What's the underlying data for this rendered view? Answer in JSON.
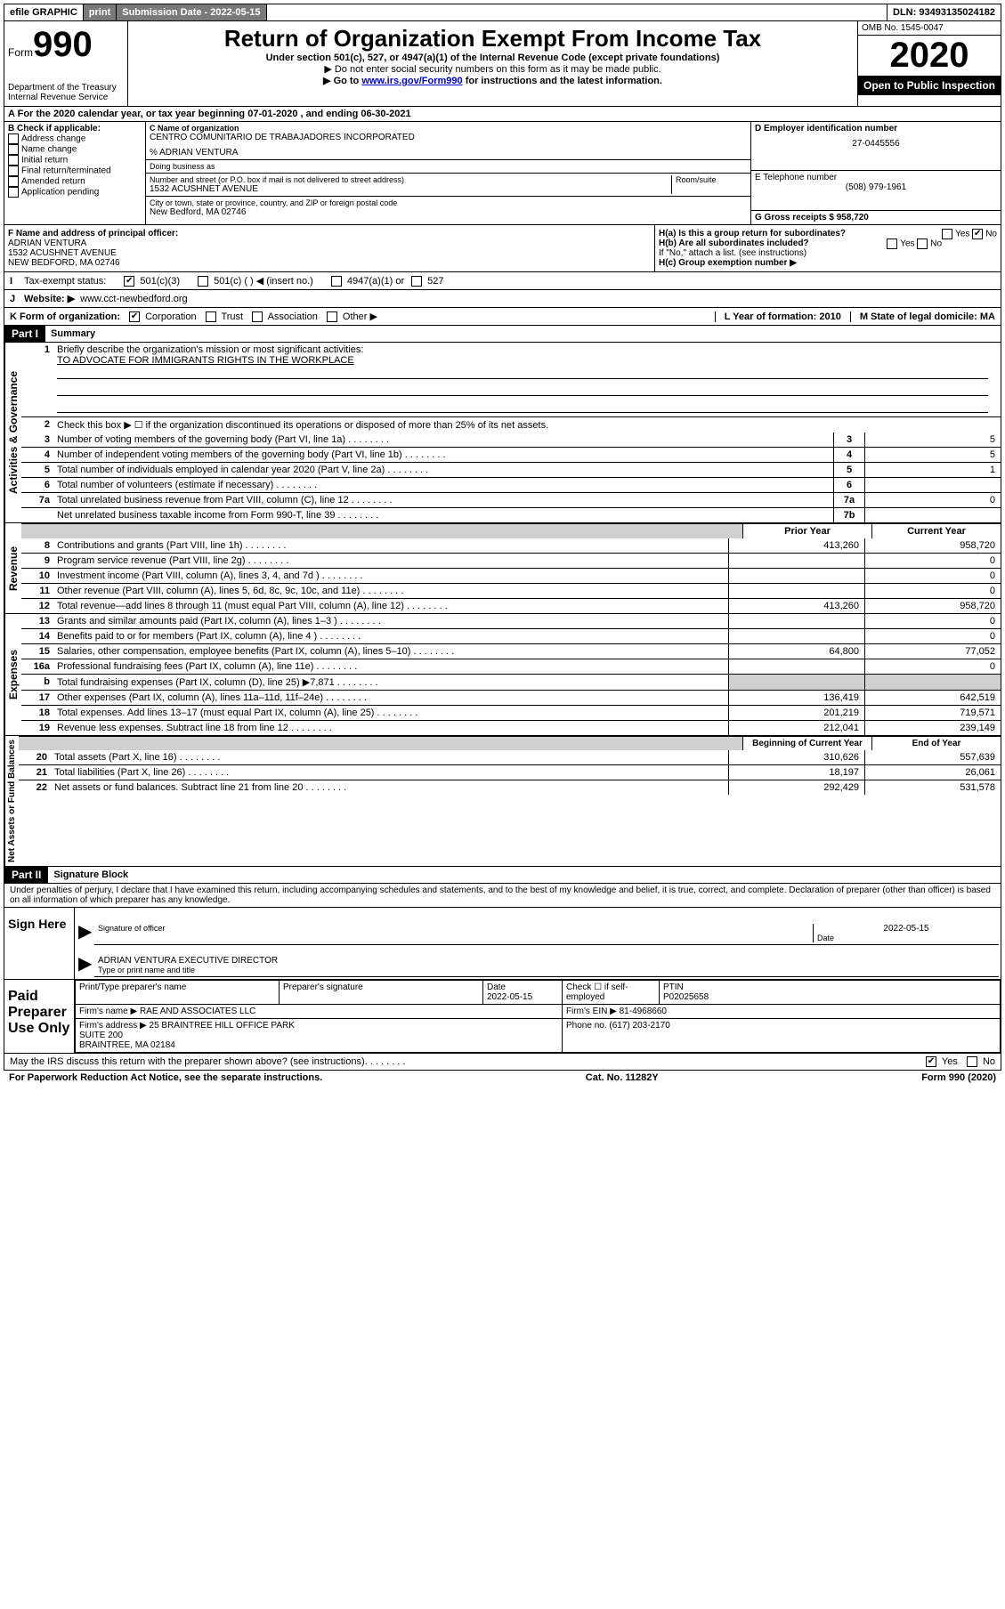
{
  "topbar": {
    "efile": "efile GRAPHIC",
    "print": "print",
    "sub_label": "Submission Date - 2022-05-15",
    "dln": "DLN: 93493135024182"
  },
  "header": {
    "form_word": "Form",
    "form_num": "990",
    "dept": "Department of the Treasury",
    "irs": "Internal Revenue Service",
    "title": "Return of Organization Exempt From Income Tax",
    "sub1": "Under section 501(c), 527, or 4947(a)(1) of the Internal Revenue Code (except private foundations)",
    "sub2": "▶ Do not enter social security numbers on this form as it may be made public.",
    "sub3_pre": "▶ Go to ",
    "sub3_link": "www.irs.gov/Form990",
    "sub3_post": " for instructions and the latest information.",
    "omb": "OMB No. 1545-0047",
    "year": "2020",
    "open": "Open to Public Inspection"
  },
  "row_a": {
    "text": "For the 2020 calendar year, or tax year beginning 07-01-2020    , and ending 06-30-2021",
    "prefix": "A"
  },
  "section_b": {
    "label": "B Check if applicable:",
    "items": [
      "Address change",
      "Name change",
      "Initial return",
      "Final return/terminated",
      "Amended return",
      "Application pending"
    ]
  },
  "section_c": {
    "name_label": "C Name of organization",
    "name": "CENTRO COMUNITARIO DE TRABAJADORES INCORPORATED",
    "care_of": "% ADRIAN VENTURA",
    "dba_label": "Doing business as",
    "street_label": "Number and street (or P.O. box if mail is not delivered to street address)",
    "room_label": "Room/suite",
    "street": "1532 ACUSHNET AVENUE",
    "city_label": "City or town, state or province, country, and ZIP or foreign postal code",
    "city": "New Bedford, MA  02746"
  },
  "section_d": {
    "ein_label": "D Employer identification number",
    "ein": "27-0445556",
    "phone_label": "E Telephone number",
    "phone": "(508) 979-1961",
    "gross_label": "G Gross receipts $ 958,720"
  },
  "section_f": {
    "label": "F Name and address of principal officer:",
    "name": "ADRIAN VENTURA",
    "street": "1532 ACUSHNET AVENUE",
    "city": "NEW BEDFORD, MA  02746"
  },
  "section_h": {
    "ha": "H(a)  Is this a group return for subordinates?",
    "hb": "H(b)  Are all subordinates included?",
    "hb_note": "If \"No,\" attach a list. (see instructions)",
    "hc": "H(c)  Group exemption number ▶",
    "yes": "Yes",
    "no": "No"
  },
  "row_i": {
    "label": "I",
    "text": "Tax-exempt status:",
    "opts": [
      "501(c)(3)",
      "501(c) (  ) ◀ (insert no.)",
      "4947(a)(1) or",
      "527"
    ]
  },
  "row_j": {
    "label": "J",
    "text": "Website: ▶",
    "url": "www.cct-newbedford.org"
  },
  "row_k": {
    "label": "K Form of organization:",
    "opts": [
      "Corporation",
      "Trust",
      "Association",
      "Other ▶"
    ],
    "l_label": "L Year of formation: 2010",
    "m_label": "M State of legal domicile: MA"
  },
  "part1": {
    "header": "Part I",
    "title": "Summary",
    "q1": "Briefly describe the organization's mission or most significant activities:",
    "mission": "TO ADVOCATE FOR IMMIGRANTS RIGHTS IN THE WORKPLACE",
    "q2": "Check this box ▶ ☐  if the organization discontinued its operations or disposed of more than 25% of its net assets.",
    "prior_year": "Prior Year",
    "current_year": "Current Year",
    "begin_year": "Beginning of Current Year",
    "end_year": "End of Year",
    "sections": {
      "governance": "Activities & Governance",
      "revenue": "Revenue",
      "expenses": "Expenses",
      "netassets": "Net Assets or Fund Balances"
    },
    "lines_gov": [
      {
        "n": "3",
        "d": "Number of voting members of the governing body (Part VI, line 1a)",
        "box": "3",
        "val": "5"
      },
      {
        "n": "4",
        "d": "Number of independent voting members of the governing body (Part VI, line 1b)",
        "box": "4",
        "val": "5"
      },
      {
        "n": "5",
        "d": "Total number of individuals employed in calendar year 2020 (Part V, line 2a)",
        "box": "5",
        "val": "1"
      },
      {
        "n": "6",
        "d": "Total number of volunteers (estimate if necessary)",
        "box": "6",
        "val": ""
      },
      {
        "n": "7a",
        "d": "Total unrelated business revenue from Part VIII, column (C), line 12",
        "box": "7a",
        "val": "0"
      },
      {
        "n": "",
        "d": "Net unrelated business taxable income from Form 990-T, line 39",
        "box": "7b",
        "val": ""
      }
    ],
    "lines_rev": [
      {
        "n": "8",
        "d": "Contributions and grants (Part VIII, line 1h)",
        "py": "413,260",
        "cy": "958,720"
      },
      {
        "n": "9",
        "d": "Program service revenue (Part VIII, line 2g)",
        "py": "",
        "cy": "0"
      },
      {
        "n": "10",
        "d": "Investment income (Part VIII, column (A), lines 3, 4, and 7d )",
        "py": "",
        "cy": "0"
      },
      {
        "n": "11",
        "d": "Other revenue (Part VIII, column (A), lines 5, 6d, 8c, 9c, 10c, and 11e)",
        "py": "",
        "cy": "0"
      },
      {
        "n": "12",
        "d": "Total revenue—add lines 8 through 11 (must equal Part VIII, column (A), line 12)",
        "py": "413,260",
        "cy": "958,720"
      }
    ],
    "lines_exp": [
      {
        "n": "13",
        "d": "Grants and similar amounts paid (Part IX, column (A), lines 1–3 )",
        "py": "",
        "cy": "0"
      },
      {
        "n": "14",
        "d": "Benefits paid to or for members (Part IX, column (A), line 4 )",
        "py": "",
        "cy": "0"
      },
      {
        "n": "15",
        "d": "Salaries, other compensation, employee benefits (Part IX, column (A), lines 5–10)",
        "py": "64,800",
        "cy": "77,052"
      },
      {
        "n": "16a",
        "d": "Professional fundraising fees (Part IX, column (A), line 11e)",
        "py": "",
        "cy": "0"
      },
      {
        "n": "b",
        "d": "Total fundraising expenses (Part IX, column (D), line 25) ▶7,871",
        "py": "shade",
        "cy": "shade"
      },
      {
        "n": "17",
        "d": "Other expenses (Part IX, column (A), lines 11a–11d, 11f–24e)",
        "py": "136,419",
        "cy": "642,519"
      },
      {
        "n": "18",
        "d": "Total expenses. Add lines 13–17 (must equal Part IX, column (A), line 25)",
        "py": "201,219",
        "cy": "719,571"
      },
      {
        "n": "19",
        "d": "Revenue less expenses. Subtract line 18 from line 12",
        "py": "212,041",
        "cy": "239,149"
      }
    ],
    "lines_net": [
      {
        "n": "20",
        "d": "Total assets (Part X, line 16)",
        "py": "310,626",
        "cy": "557,639"
      },
      {
        "n": "21",
        "d": "Total liabilities (Part X, line 26)",
        "py": "18,197",
        "cy": "26,061"
      },
      {
        "n": "22",
        "d": "Net assets or fund balances. Subtract line 21 from line 20",
        "py": "292,429",
        "cy": "531,578"
      }
    ]
  },
  "part2": {
    "header": "Part II",
    "title": "Signature Block",
    "perjury": "Under penalties of perjury, I declare that I have examined this return, including accompanying schedules and statements, and to the best of my knowledge and belief, it is true, correct, and complete. Declaration of preparer (other than officer) is based on all information of which preparer has any knowledge.",
    "sign_here": "Sign Here",
    "sig_officer": "Signature of officer",
    "date_label": "Date",
    "date_val": "2022-05-15",
    "officer_name": "ADRIAN VENTURA  EXECUTIVE DIRECTOR",
    "type_name": "Type or print name and title",
    "paid_prep": "Paid Preparer Use Only",
    "prep_name_label": "Print/Type preparer's name",
    "prep_sig_label": "Preparer's signature",
    "prep_date_label": "Date",
    "prep_date": "2022-05-15",
    "check_self": "Check ☐ if self-employed",
    "ptin_label": "PTIN",
    "ptin": "P02025658",
    "firm_name_label": "Firm's name    ▶",
    "firm_name": "RAE AND ASSOCIATES LLC",
    "firm_ein_label": "Firm's EIN ▶",
    "firm_ein": "81-4968660",
    "firm_addr_label": "Firm's address ▶",
    "firm_addr": "25 BRAINTREE HILL OFFICE PARK\nSUITE 200\nBRAINTREE, MA  02184",
    "firm_phone_label": "Phone no.",
    "firm_phone": "(617) 203-2170"
  },
  "footer": {
    "discuss": "May the IRS discuss this return with the preparer shown above? (see instructions)",
    "yes": "Yes",
    "no": "No",
    "paperwork": "For Paperwork Reduction Act Notice, see the separate instructions.",
    "cat": "Cat. No. 11282Y",
    "form": "Form 990 (2020)"
  }
}
